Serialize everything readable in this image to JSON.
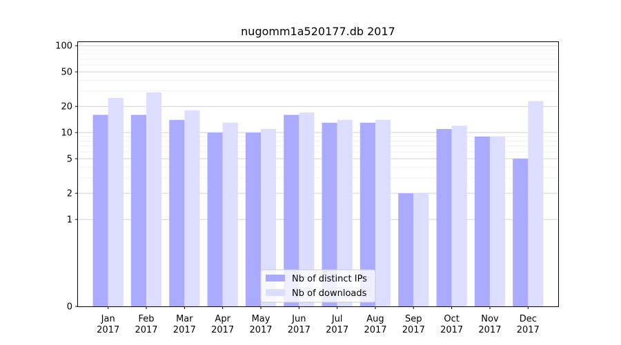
{
  "chart_data": {
    "type": "bar",
    "title": "nugomm1a520177.db 2017",
    "xlabel": "",
    "ylabel": "",
    "y_scale": "symlog",
    "ylim": [
      0,
      110
    ],
    "yticks": [
      0,
      1,
      2,
      5,
      10,
      20,
      50,
      100
    ],
    "ytick_labels": [
      "0",
      "1",
      "2",
      "5",
      "10",
      "20",
      "50",
      "100"
    ],
    "grid": true,
    "legend_position": "bottom-center",
    "categories": [
      "Jan\n2017",
      "Feb\n2017",
      "Mar\n2017",
      "Apr\n2017",
      "May\n2017",
      "Jun\n2017",
      "Jul\n2017",
      "Aug\n2017",
      "Sep\n2017",
      "Oct\n2017",
      "Nov\n2017",
      "Dec\n2017"
    ],
    "category_lines": [
      [
        "Jan",
        "2017"
      ],
      [
        "Feb",
        "2017"
      ],
      [
        "Mar",
        "2017"
      ],
      [
        "Apr",
        "2017"
      ],
      [
        "May",
        "2017"
      ],
      [
        "Jun",
        "2017"
      ],
      [
        "Jul",
        "2017"
      ],
      [
        "Aug",
        "2017"
      ],
      [
        "Sep",
        "2017"
      ],
      [
        "Oct",
        "2017"
      ],
      [
        "Nov",
        "2017"
      ],
      [
        "Dec",
        "2017"
      ]
    ],
    "series": [
      {
        "name": "Nb of distinct IPs",
        "color": "#aaaaff",
        "values": [
          16,
          16,
          14,
          10,
          10,
          16,
          13,
          13,
          2,
          11,
          9,
          5
        ]
      },
      {
        "name": "Nb of downloads",
        "color": "#ddddff",
        "values": [
          25,
          29,
          18,
          13,
          11,
          17,
          14,
          14,
          2,
          12,
          9,
          23
        ]
      }
    ]
  }
}
